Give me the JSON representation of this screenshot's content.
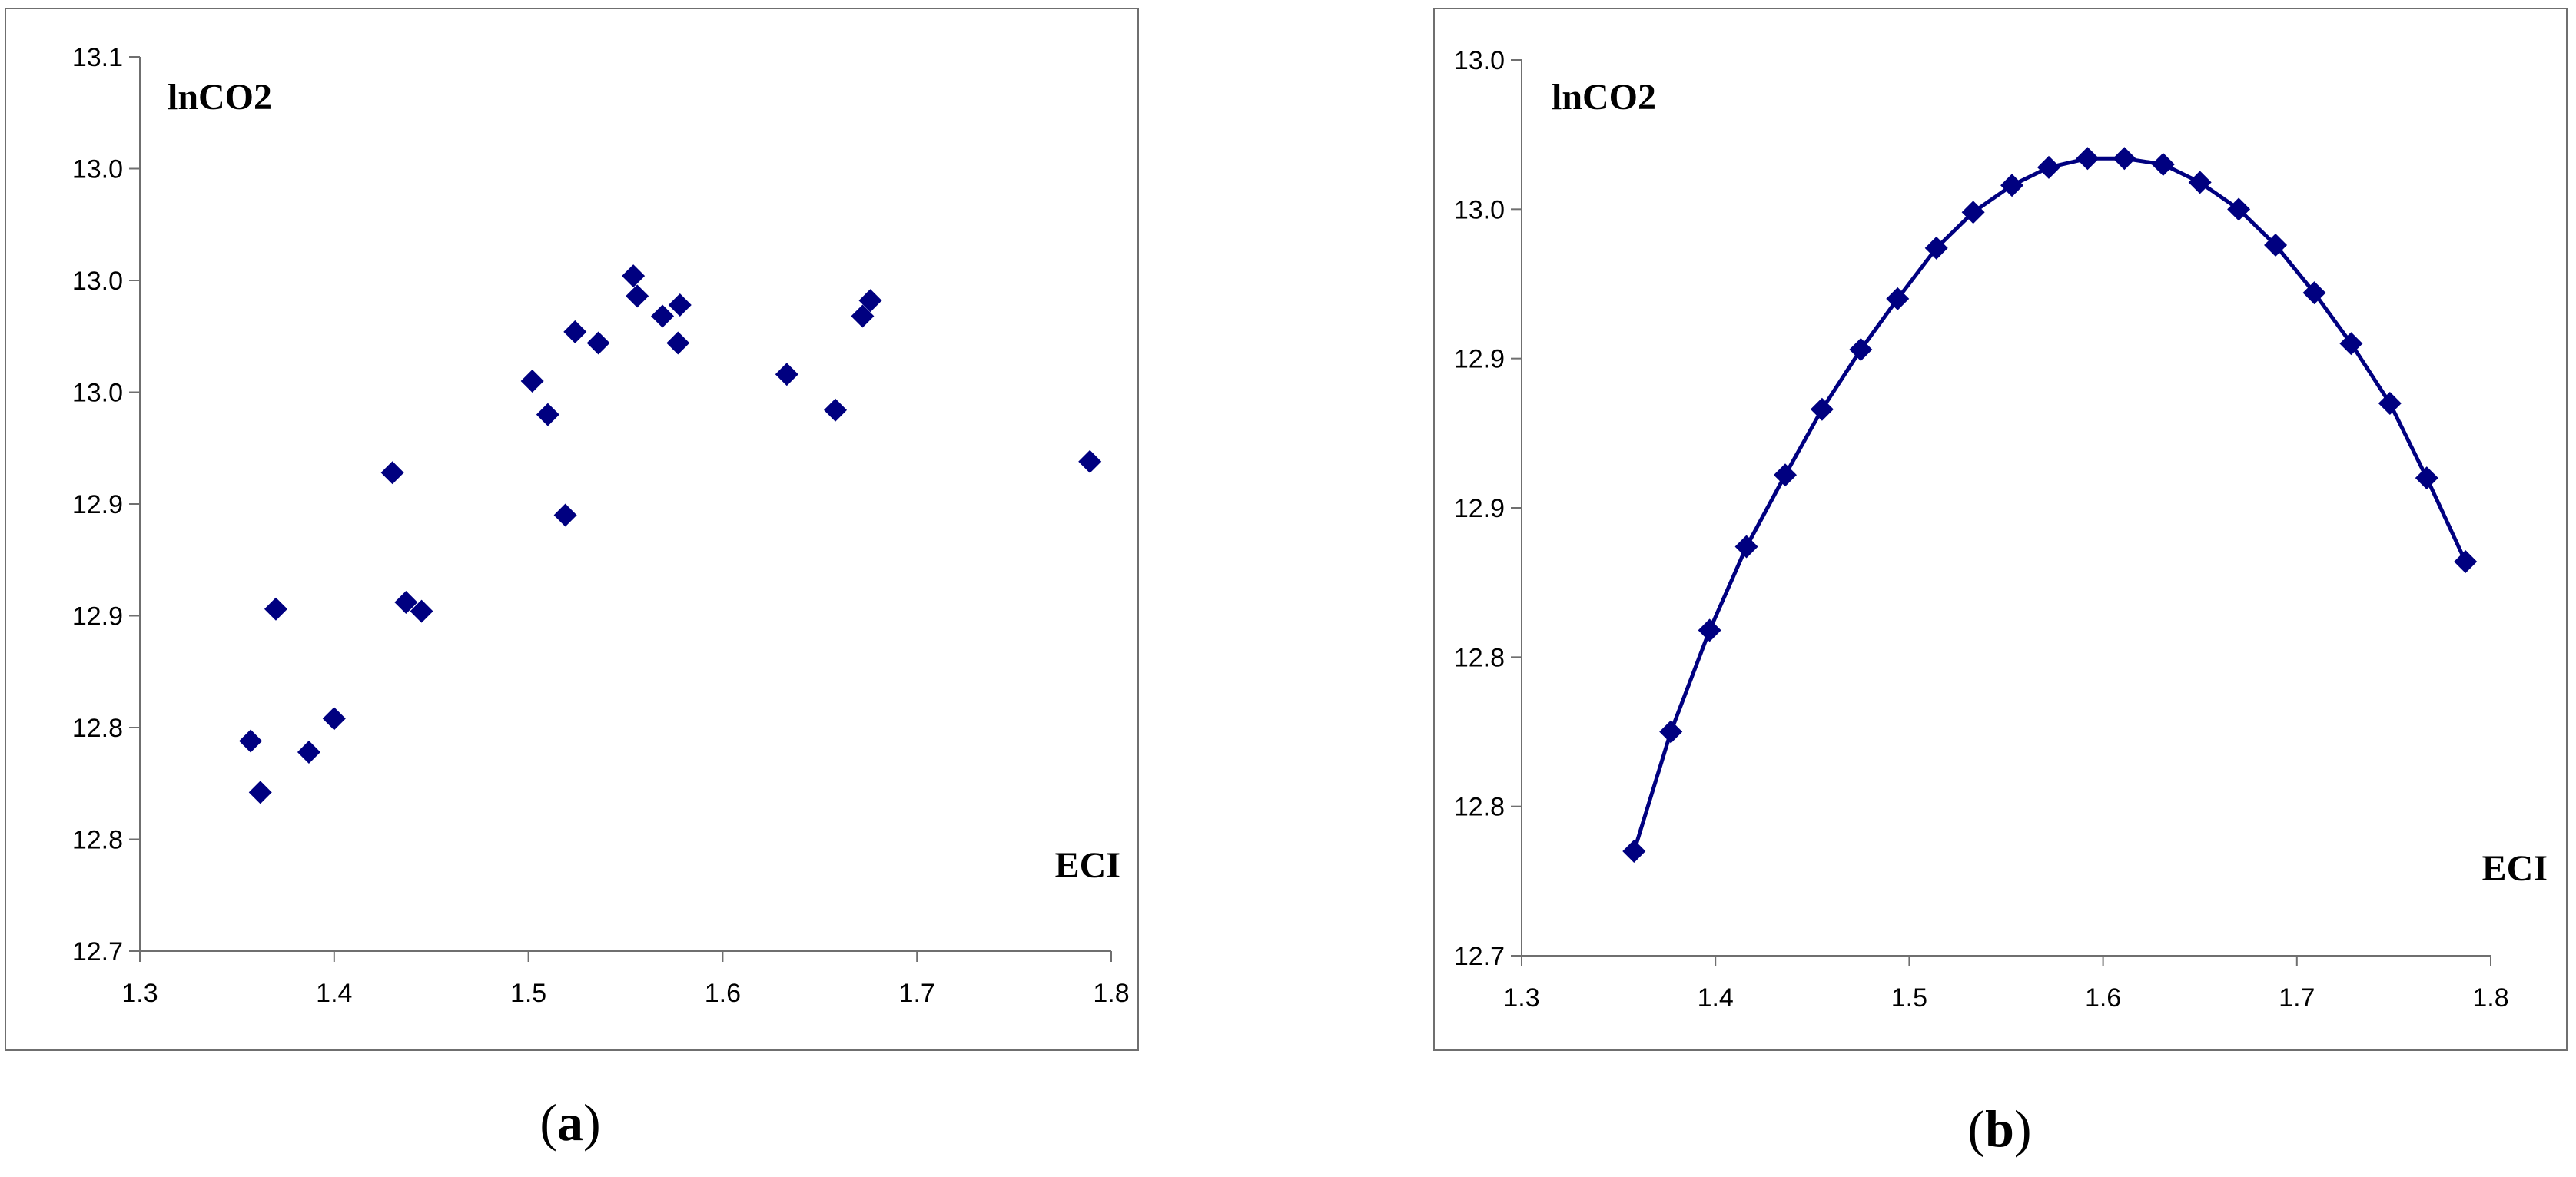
{
  "colors": {
    "marker": "#000080",
    "axis": "#6f6f6f",
    "text": "#000000"
  },
  "chart_data": [
    {
      "id": "a",
      "type": "scatter",
      "caption_label": "a",
      "ylabel": "lnCO2",
      "xlabel": "ECI",
      "xlim": [
        1.3,
        1.8
      ],
      "ylim": [
        12.7,
        13.1
      ],
      "x_ticks": [
        1.3,
        1.4,
        1.5,
        1.6,
        1.7,
        1.8
      ],
      "x_tick_labels": [
        "1.3",
        "1.4",
        "1.5",
        "1.6",
        "1.7",
        "1.8"
      ],
      "y_ticks": [
        12.7,
        12.75,
        12.8,
        12.85,
        12.9,
        12.95,
        13.0,
        13.05,
        13.1
      ],
      "y_tick_labels": [
        "12.7",
        "12.8",
        "12.8",
        "12.9",
        "12.9",
        "13.0",
        "13.0",
        "13.0",
        "13.1"
      ],
      "grid": false,
      "marker": "diamond",
      "connect": false,
      "points": [
        [
          1.357,
          12.794
        ],
        [
          1.362,
          12.771
        ],
        [
          1.37,
          12.853
        ],
        [
          1.387,
          12.789
        ],
        [
          1.4,
          12.804
        ],
        [
          1.43,
          12.914
        ],
        [
          1.437,
          12.856
        ],
        [
          1.445,
          12.852
        ],
        [
          1.502,
          12.955
        ],
        [
          1.51,
          12.94
        ],
        [
          1.519,
          12.895
        ],
        [
          1.524,
          12.977
        ],
        [
          1.536,
          12.972
        ],
        [
          1.554,
          13.002
        ],
        [
          1.556,
          12.993
        ],
        [
          1.569,
          12.984
        ],
        [
          1.577,
          12.972
        ],
        [
          1.578,
          12.989
        ],
        [
          1.633,
          12.958
        ],
        [
          1.658,
          12.942
        ],
        [
          1.672,
          12.984
        ],
        [
          1.676,
          12.991
        ],
        [
          1.789,
          12.919
        ]
      ]
    },
    {
      "id": "b",
      "type": "line",
      "caption_label": "b",
      "ylabel": "lnCO2",
      "xlabel": "ECI",
      "xlim": [
        1.3,
        1.8
      ],
      "ylim": [
        12.7,
        13.0
      ],
      "x_ticks": [
        1.3,
        1.4,
        1.5,
        1.6,
        1.7,
        1.8
      ],
      "x_tick_labels": [
        "1.3",
        "1.4",
        "1.5",
        "1.6",
        "1.7",
        "1.8"
      ],
      "y_ticks": [
        12.7,
        12.75,
        12.8,
        12.85,
        12.9,
        12.95,
        13.0
      ],
      "y_tick_labels": [
        "12.7",
        "12.8",
        "12.8",
        "12.9",
        "12.9",
        "13.0",
        "13.0"
      ],
      "grid": false,
      "marker": "diamond",
      "connect": true,
      "points": [
        [
          1.358,
          12.735
        ],
        [
          1.377,
          12.775
        ],
        [
          1.397,
          12.809
        ],
        [
          1.416,
          12.837
        ],
        [
          1.436,
          12.861
        ],
        [
          1.455,
          12.883
        ],
        [
          1.475,
          12.903
        ],
        [
          1.494,
          12.92
        ],
        [
          1.514,
          12.937
        ],
        [
          1.533,
          12.949
        ],
        [
          1.553,
          12.958
        ],
        [
          1.572,
          12.964
        ],
        [
          1.592,
          12.967
        ],
        [
          1.611,
          12.967
        ],
        [
          1.631,
          12.965
        ],
        [
          1.65,
          12.959
        ],
        [
          1.67,
          12.95
        ],
        [
          1.689,
          12.938
        ],
        [
          1.709,
          12.922
        ],
        [
          1.728,
          12.905
        ],
        [
          1.748,
          12.885
        ],
        [
          1.767,
          12.86
        ],
        [
          1.787,
          12.832
        ]
      ]
    }
  ]
}
